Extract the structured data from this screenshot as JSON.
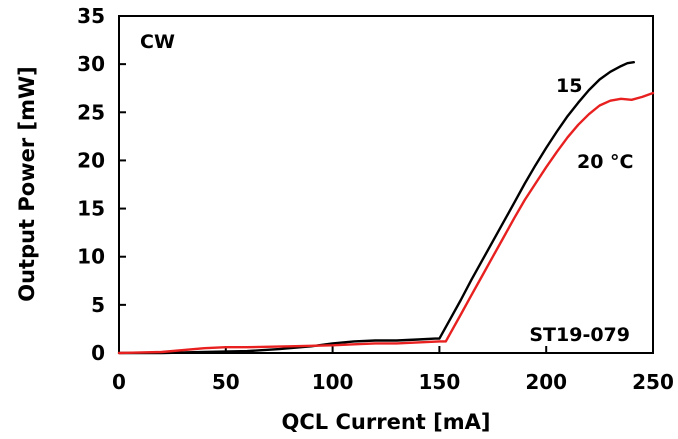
{
  "chart_data": {
    "type": "line",
    "xlabel": "QCL Current [mA]",
    "ylabel": "Output Power [mW]",
    "xlim": [
      0,
      250
    ],
    "ylim": [
      0,
      35
    ],
    "xticks": [
      0,
      50,
      100,
      150,
      200,
      250
    ],
    "yticks": [
      0,
      5,
      10,
      15,
      20,
      25,
      30,
      35
    ],
    "grid": false,
    "annotations": {
      "mode": "CW",
      "device": "ST19-079"
    },
    "series": [
      {
        "name": "15",
        "color": "#000000",
        "x": [
          0,
          20,
          40,
          60,
          75,
          90,
          100,
          110,
          120,
          130,
          140,
          148,
          150,
          155,
          160,
          165,
          170,
          175,
          180,
          185,
          190,
          195,
          200,
          205,
          210,
          215,
          220,
          225,
          230,
          235,
          238,
          241
        ],
        "y": [
          0,
          0,
          0.1,
          0.2,
          0.4,
          0.7,
          1.0,
          1.2,
          1.3,
          1.3,
          1.4,
          1.5,
          1.5,
          3.5,
          5.5,
          7.6,
          9.6,
          11.6,
          13.6,
          15.6,
          17.6,
          19.5,
          21.3,
          23.0,
          24.6,
          26.0,
          27.3,
          28.4,
          29.2,
          29.8,
          30.1,
          30.2
        ]
      },
      {
        "name": "20 °C",
        "color": "#e82020",
        "x": [
          0,
          20,
          40,
          50,
          60,
          80,
          100,
          110,
          120,
          130,
          140,
          150,
          153,
          155,
          160,
          165,
          170,
          175,
          180,
          185,
          190,
          195,
          200,
          205,
          210,
          215,
          220,
          225,
          230,
          235,
          240,
          245,
          250
        ],
        "y": [
          0,
          0.1,
          0.5,
          0.6,
          0.6,
          0.7,
          0.8,
          0.9,
          1.0,
          1.0,
          1.1,
          1.2,
          1.2,
          2.0,
          4.0,
          6.0,
          8.0,
          10.0,
          12.0,
          14.0,
          15.9,
          17.6,
          19.3,
          20.9,
          22.4,
          23.7,
          24.8,
          25.7,
          26.2,
          26.4,
          26.3,
          26.6,
          27.0
        ]
      }
    ]
  }
}
